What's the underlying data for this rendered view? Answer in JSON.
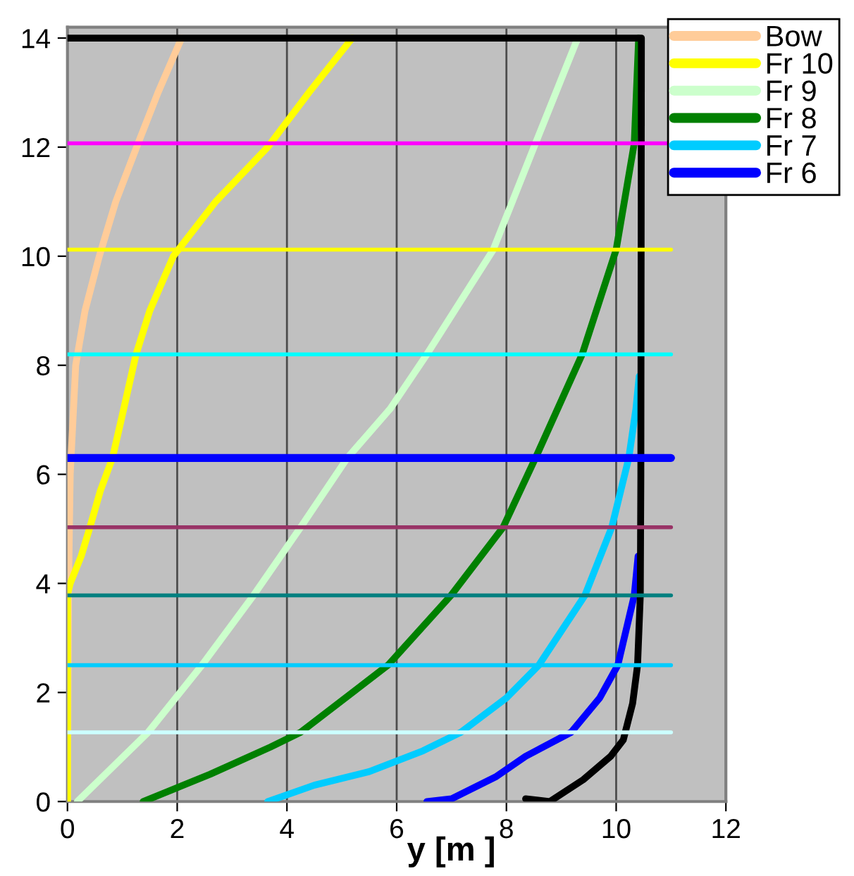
{
  "chart_data": {
    "type": "line",
    "xlabel": "y [m ]",
    "xlim": [
      0,
      12
    ],
    "ylim": [
      0,
      14.2
    ],
    "xticks": [
      0,
      2,
      4,
      6,
      8,
      10,
      12
    ],
    "yticks": [
      0,
      2,
      4,
      6,
      8,
      10,
      12,
      14
    ],
    "grid": "x",
    "legend": "top right",
    "line_style": "solid",
    "marker": "none",
    "series": [
      {
        "name": "Bow",
        "color": "#ffcc99",
        "x": [
          0,
          0.02,
          0.05,
          0.1,
          0.15,
          0.32,
          0.58,
          0.88,
          1.26,
          1.65,
          2.08
        ],
        "values": [
          0,
          4,
          6,
          7,
          8,
          9,
          10,
          11,
          12,
          13,
          14
        ]
      },
      {
        "name": "Fr 10",
        "color": "#ffff00",
        "x": [
          0,
          0,
          0.05,
          0.25,
          0.4,
          0.6,
          0.82,
          0.98,
          1.25,
          1.5,
          1.93,
          2.7,
          3.65,
          4.4,
          5.19
        ],
        "values": [
          0,
          3.8,
          4,
          4.5,
          5,
          5.7,
          6.3,
          7,
          8.2,
          9,
          10,
          11,
          12,
          13,
          14
        ]
      },
      {
        "name": "Fr 9",
        "color": "#ccffcc",
        "x": [
          0.18,
          1.47,
          2.45,
          3.39,
          4.25,
          5.1,
          5.88,
          6.55,
          7.76,
          8.53,
          9.3
        ],
        "values": [
          0,
          1.27,
          2.5,
          3.78,
          5.03,
          6.3,
          7.2,
          8.2,
          10.12,
          12.07,
          14
        ]
      },
      {
        "name": "Fr 8",
        "color": "#008000",
        "x": [
          1.38,
          2.6,
          3.7,
          4.25,
          5.84,
          6.99,
          7.94,
          8.53,
          9.38,
          10.0,
          10.33,
          10.41
        ],
        "values": [
          0,
          0.5,
          1.0,
          1.27,
          2.5,
          3.78,
          5.03,
          6.3,
          8.2,
          10.12,
          12.07,
          14
        ]
      },
      {
        "name": "Fr 7",
        "color": "#00ccff",
        "x": [
          3.65,
          4.5,
          5.5,
          6.48,
          7.17,
          8.0,
          8.59,
          9.43,
          9.92,
          10.23,
          10.36,
          10.42
        ],
        "values": [
          0,
          0.3,
          0.55,
          0.93,
          1.27,
          1.9,
          2.5,
          3.78,
          5.03,
          6.3,
          7.2,
          7.8
        ]
      },
      {
        "name": "Fr 6",
        "color": "#0000ff",
        "x": [
          6.55,
          7.0,
          7.8,
          8.35,
          9.18,
          9.7,
          10.03,
          10.33,
          10.4
        ],
        "values": [
          0,
          0.05,
          0.45,
          0.83,
          1.27,
          1.9,
          2.5,
          3.78,
          4.5
        ]
      },
      {
        "color": "#000000",
        "x": [
          8.35,
          8.79,
          9.4,
          9.9,
          10.13,
          10.3,
          10.39,
          10.44,
          10.45,
          10.46,
          0
        ],
        "values": [
          0.05,
          0,
          0.4,
          0.83,
          1.13,
          1.8,
          2.5,
          3.78,
          6,
          14,
          14
        ]
      },
      {
        "color": "#ff00ff",
        "x": [
          0,
          11
        ],
        "values": [
          12.07,
          12.07
        ]
      },
      {
        "color": "#ffff00",
        "x": [
          0,
          11
        ],
        "values": [
          10.12,
          10.12
        ]
      },
      {
        "color": "#00ffff",
        "x": [
          0,
          11
        ],
        "values": [
          8.2,
          8.2
        ]
      },
      {
        "color": "#0000ff",
        "x": [
          0,
          11
        ],
        "values": [
          6.3,
          6.3
        ]
      },
      {
        "color": "#993366",
        "x": [
          0,
          11
        ],
        "values": [
          5.03,
          5.03
        ]
      },
      {
        "color": "#008080",
        "x": [
          0,
          11
        ],
        "values": [
          3.78,
          3.78
        ]
      },
      {
        "color": "#00ccff",
        "x": [
          0,
          11
        ],
        "values": [
          2.5,
          2.5
        ]
      },
      {
        "color": "#ccffff",
        "x": [
          0,
          11
        ],
        "values": [
          1.27,
          1.27
        ]
      }
    ]
  }
}
